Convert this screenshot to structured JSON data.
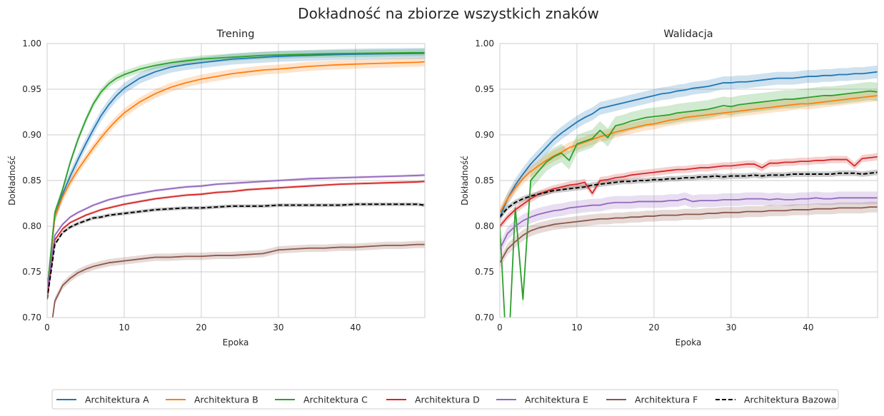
{
  "figure_title": "Dokładność na zbiorze wszystkich znaków",
  "colors": {
    "Architektura A": "#1f77b4",
    "Architektura B": "#ff7f0e",
    "Architektura C": "#2ca02c",
    "Architektura D": "#d62728",
    "Architektura E": "#9467bd",
    "Architektura F": "#8c564b",
    "Architektura Bazowa": "#000000"
  },
  "legend": {
    "placement": "bottom-center",
    "entries": [
      "Architektura A",
      "Architektura B",
      "Architektura C",
      "Architektura D",
      "Architektura E",
      "Architektura F",
      "Architektura Bazowa"
    ]
  },
  "chart_data": [
    {
      "type": "line",
      "title": "Trening",
      "xlabel": "Epoka",
      "ylabel": "Dokładność",
      "xlim": [
        0,
        49
      ],
      "ylim": [
        0.7,
        1.0
      ],
      "xticks": [
        "0",
        "10",
        "20",
        "30",
        "40"
      ],
      "yticks": [
        "0.70",
        "0.75",
        "0.80",
        "0.85",
        "0.90",
        "0.95",
        "1.00"
      ],
      "grid": true,
      "x": [
        0,
        1,
        2,
        3,
        4,
        5,
        6,
        7,
        8,
        9,
        10,
        12,
        14,
        16,
        18,
        20,
        22,
        24,
        26,
        28,
        30,
        32,
        34,
        36,
        38,
        40,
        42,
        44,
        46,
        48,
        49
      ],
      "series": [
        {
          "name": "Architektura A",
          "style": "solid",
          "band": 0.006,
          "values": [
            0.73,
            0.81,
            0.835,
            0.855,
            0.873,
            0.89,
            0.906,
            0.921,
            0.933,
            0.943,
            0.951,
            0.962,
            0.969,
            0.974,
            0.977,
            0.979,
            0.981,
            0.983,
            0.984,
            0.985,
            0.986,
            0.9865,
            0.987,
            0.9875,
            0.988,
            0.9883,
            0.9886,
            0.9888,
            0.989,
            0.9892,
            0.9893
          ]
        },
        {
          "name": "Architektura B",
          "style": "solid",
          "band": 0.005,
          "values": [
            0.73,
            0.81,
            0.832,
            0.848,
            0.862,
            0.874,
            0.886,
            0.897,
            0.907,
            0.916,
            0.924,
            0.936,
            0.945,
            0.952,
            0.957,
            0.961,
            0.964,
            0.967,
            0.969,
            0.971,
            0.972,
            0.9735,
            0.975,
            0.976,
            0.9768,
            0.9775,
            0.978,
            0.9785,
            0.979,
            0.9795,
            0.98
          ]
        },
        {
          "name": "Architektura C",
          "style": "solid",
          "band": 0.004,
          "values": [
            0.73,
            0.815,
            0.84,
            0.87,
            0.895,
            0.916,
            0.934,
            0.947,
            0.956,
            0.962,
            0.966,
            0.972,
            0.976,
            0.979,
            0.981,
            0.983,
            0.984,
            0.985,
            0.986,
            0.987,
            0.9875,
            0.988,
            0.9884,
            0.9887,
            0.989,
            0.9892,
            0.9894,
            0.9896,
            0.9898,
            0.99,
            0.99
          ]
        },
        {
          "name": "Architektura D",
          "style": "solid",
          "band": 0.0015,
          "values": [
            0.72,
            0.785,
            0.797,
            0.804,
            0.808,
            0.812,
            0.815,
            0.818,
            0.82,
            0.822,
            0.824,
            0.827,
            0.83,
            0.832,
            0.834,
            0.835,
            0.837,
            0.838,
            0.84,
            0.841,
            0.842,
            0.843,
            0.844,
            0.845,
            0.846,
            0.8465,
            0.847,
            0.8475,
            0.848,
            0.8485,
            0.849
          ]
        },
        {
          "name": "Architektura E",
          "style": "solid",
          "band": 0.0015,
          "values": [
            0.73,
            0.79,
            0.802,
            0.81,
            0.815,
            0.819,
            0.823,
            0.826,
            0.829,
            0.831,
            0.833,
            0.836,
            0.839,
            0.841,
            0.843,
            0.844,
            0.846,
            0.847,
            0.848,
            0.849,
            0.85,
            0.851,
            0.852,
            0.8525,
            0.853,
            0.8535,
            0.854,
            0.8545,
            0.855,
            0.8555,
            0.856
          ]
        },
        {
          "name": "Architektura F",
          "style": "solid",
          "band": 0.004,
          "values": [
            0.655,
            0.718,
            0.735,
            0.743,
            0.749,
            0.753,
            0.756,
            0.758,
            0.76,
            0.761,
            0.762,
            0.764,
            0.766,
            0.766,
            0.767,
            0.767,
            0.768,
            0.768,
            0.769,
            0.77,
            0.774,
            0.775,
            0.776,
            0.776,
            0.777,
            0.777,
            0.778,
            0.779,
            0.779,
            0.78,
            0.78
          ]
        },
        {
          "name": "Architektura Bazowa",
          "style": "dashed",
          "band": 0.002,
          "values": [
            0.72,
            0.78,
            0.793,
            0.799,
            0.803,
            0.806,
            0.809,
            0.81,
            0.812,
            0.813,
            0.814,
            0.816,
            0.818,
            0.819,
            0.82,
            0.82,
            0.821,
            0.822,
            0.822,
            0.822,
            0.823,
            0.823,
            0.823,
            0.823,
            0.823,
            0.824,
            0.824,
            0.824,
            0.824,
            0.824,
            0.823
          ]
        }
      ]
    },
    {
      "type": "line",
      "title": "Walidacja",
      "xlabel": "Epoka",
      "ylabel": "Dokładność",
      "xlim": [
        0,
        49
      ],
      "ylim": [
        0.7,
        1.0
      ],
      "xticks": [
        "0",
        "10",
        "20",
        "30",
        "40"
      ],
      "yticks": [
        "0.70",
        "0.75",
        "0.80",
        "0.85",
        "0.90",
        "0.95",
        "1.00"
      ],
      "grid": true,
      "x": [
        0,
        1,
        2,
        3,
        4,
        5,
        6,
        7,
        8,
        9,
        10,
        11,
        12,
        13,
        14,
        15,
        16,
        17,
        18,
        19,
        20,
        21,
        22,
        23,
        24,
        25,
        26,
        27,
        28,
        29,
        30,
        31,
        32,
        33,
        34,
        35,
        36,
        37,
        38,
        39,
        40,
        41,
        42,
        43,
        44,
        45,
        46,
        47,
        48,
        49
      ],
      "series": [
        {
          "name": "Architektura A",
          "style": "solid",
          "band": 0.007,
          "values": [
            0.81,
            0.83,
            0.845,
            0.857,
            0.868,
            0.877,
            0.886,
            0.895,
            0.902,
            0.908,
            0.914,
            0.919,
            0.923,
            0.929,
            0.931,
            0.933,
            0.935,
            0.937,
            0.939,
            0.941,
            0.943,
            0.945,
            0.946,
            0.948,
            0.949,
            0.951,
            0.952,
            0.953,
            0.955,
            0.957,
            0.957,
            0.958,
            0.958,
            0.959,
            0.96,
            0.961,
            0.962,
            0.962,
            0.962,
            0.963,
            0.964,
            0.964,
            0.965,
            0.965,
            0.966,
            0.966,
            0.967,
            0.967,
            0.968,
            0.969
          ]
        },
        {
          "name": "Architektura B",
          "style": "solid",
          "band": 0.006,
          "values": [
            0.815,
            0.83,
            0.842,
            0.852,
            0.86,
            0.866,
            0.872,
            0.877,
            0.881,
            0.886,
            0.889,
            0.892,
            0.895,
            0.898,
            0.9,
            0.903,
            0.905,
            0.907,
            0.909,
            0.911,
            0.912,
            0.914,
            0.916,
            0.917,
            0.919,
            0.92,
            0.921,
            0.922,
            0.923,
            0.924,
            0.925,
            0.926,
            0.927,
            0.928,
            0.929,
            0.93,
            0.931,
            0.932,
            0.933,
            0.934,
            0.934,
            0.935,
            0.936,
            0.937,
            0.938,
            0.939,
            0.94,
            0.941,
            0.942,
            0.943
          ]
        },
        {
          "name": "Architektura C",
          "style": "solid",
          "band": 0.01,
          "values": [
            0.8,
            0.64,
            0.82,
            0.72,
            0.85,
            0.86,
            0.87,
            0.876,
            0.88,
            0.872,
            0.89,
            0.893,
            0.896,
            0.905,
            0.897,
            0.91,
            0.912,
            0.915,
            0.917,
            0.919,
            0.92,
            0.921,
            0.922,
            0.924,
            0.925,
            0.926,
            0.927,
            0.928,
            0.93,
            0.932,
            0.931,
            0.933,
            0.934,
            0.935,
            0.936,
            0.937,
            0.938,
            0.939,
            0.939,
            0.94,
            0.941,
            0.942,
            0.943,
            0.943,
            0.944,
            0.945,
            0.946,
            0.947,
            0.948,
            0.947
          ]
        },
        {
          "name": "Architektura D",
          "style": "solid",
          "band": 0.004,
          "values": [
            0.8,
            0.81,
            0.818,
            0.824,
            0.83,
            0.835,
            0.838,
            0.841,
            0.843,
            0.845,
            0.846,
            0.848,
            0.836,
            0.85,
            0.851,
            0.853,
            0.854,
            0.856,
            0.857,
            0.858,
            0.859,
            0.86,
            0.861,
            0.862,
            0.862,
            0.863,
            0.864,
            0.864,
            0.865,
            0.866,
            0.866,
            0.867,
            0.868,
            0.868,
            0.864,
            0.869,
            0.869,
            0.87,
            0.87,
            0.871,
            0.871,
            0.872,
            0.872,
            0.873,
            0.873,
            0.873,
            0.866,
            0.874,
            0.875,
            0.876
          ]
        },
        {
          "name": "Architektura E",
          "style": "solid",
          "band": 0.007,
          "values": [
            0.775,
            0.792,
            0.8,
            0.806,
            0.81,
            0.813,
            0.815,
            0.817,
            0.818,
            0.82,
            0.821,
            0.822,
            0.823,
            0.823,
            0.825,
            0.826,
            0.826,
            0.826,
            0.827,
            0.827,
            0.827,
            0.827,
            0.828,
            0.828,
            0.83,
            0.827,
            0.828,
            0.828,
            0.828,
            0.829,
            0.829,
            0.829,
            0.83,
            0.83,
            0.83,
            0.829,
            0.83,
            0.829,
            0.829,
            0.83,
            0.83,
            0.831,
            0.83,
            0.83,
            0.831,
            0.831,
            0.831,
            0.831,
            0.831,
            0.831
          ]
        },
        {
          "name": "Architektura F",
          "style": "solid",
          "band": 0.006,
          "values": [
            0.76,
            0.775,
            0.783,
            0.79,
            0.795,
            0.798,
            0.8,
            0.802,
            0.803,
            0.804,
            0.805,
            0.806,
            0.807,
            0.808,
            0.808,
            0.809,
            0.809,
            0.81,
            0.81,
            0.811,
            0.811,
            0.812,
            0.812,
            0.812,
            0.813,
            0.813,
            0.813,
            0.814,
            0.814,
            0.815,
            0.815,
            0.815,
            0.816,
            0.816,
            0.816,
            0.817,
            0.817,
            0.817,
            0.818,
            0.818,
            0.818,
            0.819,
            0.819,
            0.819,
            0.82,
            0.82,
            0.82,
            0.82,
            0.821,
            0.821
          ]
        },
        {
          "name": "Architektura Bazowa",
          "style": "dashed",
          "band": 0.003,
          "values": [
            0.81,
            0.82,
            0.826,
            0.83,
            0.833,
            0.835,
            0.837,
            0.839,
            0.84,
            0.841,
            0.842,
            0.843,
            0.845,
            0.846,
            0.847,
            0.848,
            0.849,
            0.849,
            0.85,
            0.85,
            0.851,
            0.851,
            0.852,
            0.852,
            0.853,
            0.853,
            0.854,
            0.854,
            0.855,
            0.854,
            0.855,
            0.855,
            0.855,
            0.856,
            0.855,
            0.856,
            0.856,
            0.856,
            0.857,
            0.857,
            0.857,
            0.857,
            0.857,
            0.857,
            0.858,
            0.858,
            0.858,
            0.857,
            0.858,
            0.859
          ]
        }
      ]
    }
  ]
}
